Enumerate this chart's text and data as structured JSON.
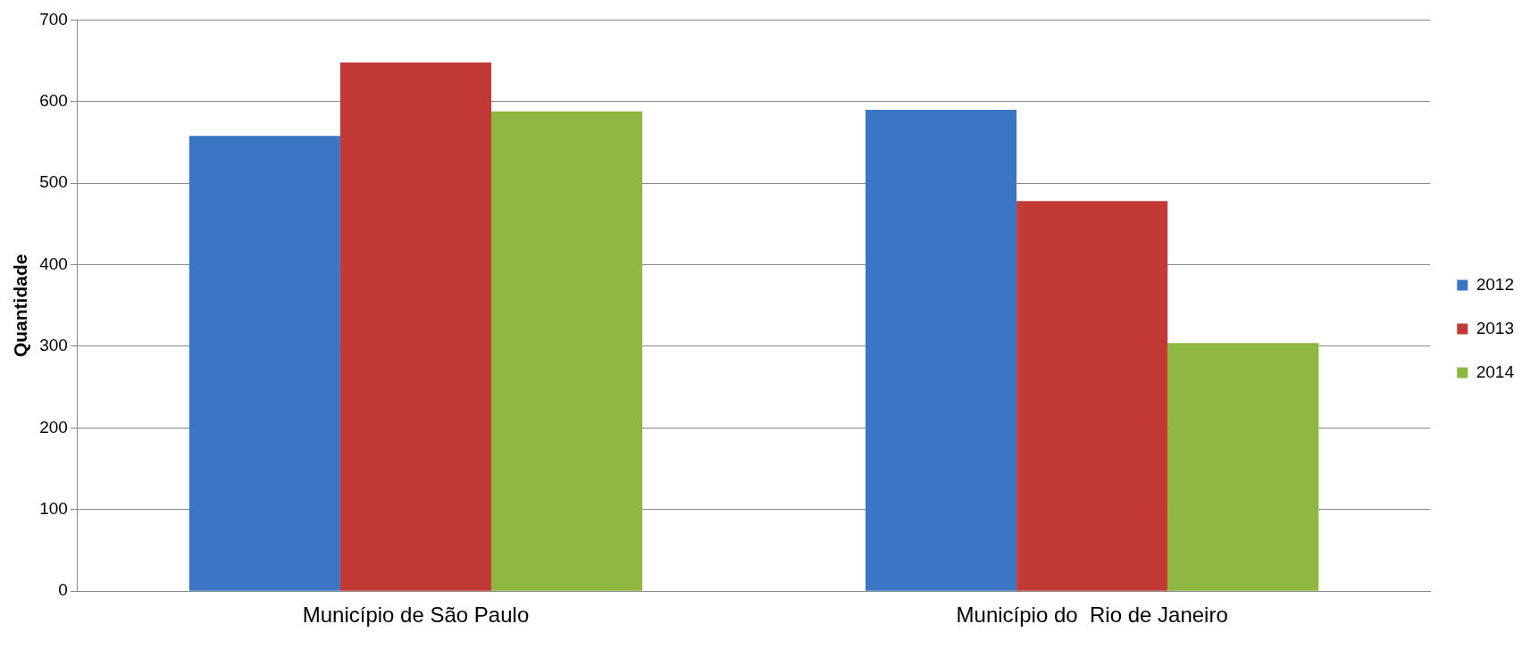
{
  "chart_data": {
    "type": "bar",
    "ylabel": "Quantidade",
    "categories": [
      "Município de São Paulo",
      "Município do  Rio de Janeiro"
    ],
    "series": [
      {
        "name": "2012",
        "color": "#3a76c4",
        "values": [
          558,
          590
        ]
      },
      {
        "name": "2013",
        "color": "#c23a35",
        "values": [
          648,
          478
        ]
      },
      {
        "name": "2014",
        "color": "#8fb843",
        "values": [
          588,
          304
        ]
      }
    ],
    "ylim": [
      0,
      700
    ],
    "yticks": [
      0,
      100,
      200,
      300,
      400,
      500,
      600,
      700
    ],
    "grid": "y",
    "legend": "right"
  }
}
